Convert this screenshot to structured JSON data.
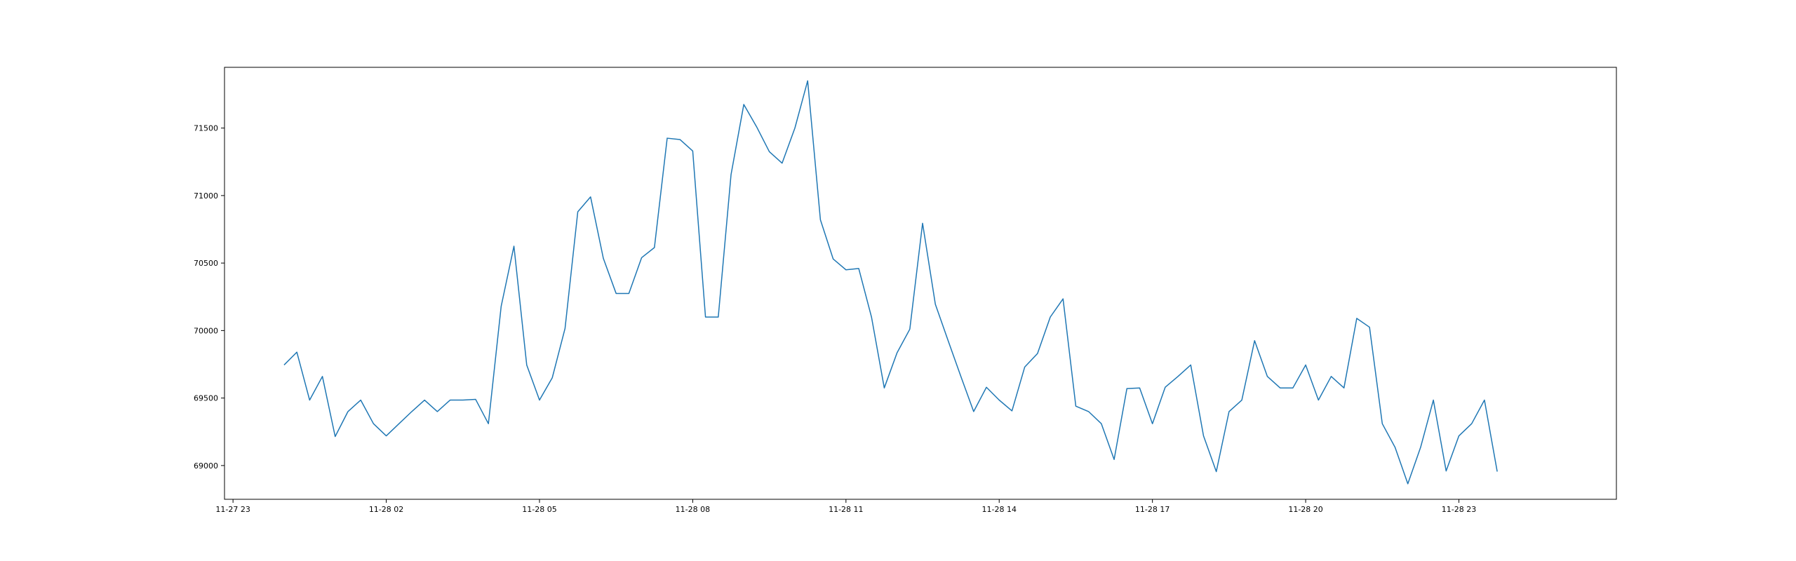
{
  "chart_data": {
    "type": "line",
    "title": "",
    "xlabel": "",
    "ylabel": "",
    "grid": false,
    "legend": "none",
    "line_color": "#1f77b4",
    "xlim": [
      "2023-11-27 22:50",
      "2023-11-29 02:05"
    ],
    "ylim": [
      68750,
      71950
    ],
    "x_ticks": [
      "2023-11-27 23:00",
      "2023-11-28 02:00",
      "2023-11-28 05:00",
      "2023-11-28 08:00",
      "2023-11-28 11:00",
      "2023-11-28 14:00",
      "2023-11-28 17:00",
      "2023-11-28 20:00",
      "2023-11-28 23:00"
    ],
    "x_tick_labels": [
      "11-27 23",
      "11-28 02",
      "11-28 05",
      "11-28 08",
      "11-28 11",
      "11-28 14",
      "11-28 17",
      "11-28 20",
      "11-28 23"
    ],
    "y_ticks": [
      69000,
      69500,
      70000,
      70500,
      71000,
      71500
    ],
    "y_tick_labels": [
      "69000",
      "69500",
      "70000",
      "70500",
      "71000",
      "71500"
    ],
    "series": [
      {
        "x": [
          "2023-11-28 00:00",
          "2023-11-28 00:15",
          "2023-11-28 00:30",
          "2023-11-28 00:45",
          "2023-11-28 01:00",
          "2023-11-28 01:15",
          "2023-11-28 01:30",
          "2023-11-28 01:45",
          "2023-11-28 02:00",
          "2023-11-28 02:15",
          "2023-11-28 02:30",
          "2023-11-28 02:45",
          "2023-11-28 03:00",
          "2023-11-28 03:15",
          "2023-11-28 03:30",
          "2023-11-28 03:45",
          "2023-11-28 04:00",
          "2023-11-28 04:15",
          "2023-11-28 04:30",
          "2023-11-28 04:45",
          "2023-11-28 05:00",
          "2023-11-28 05:15",
          "2023-11-28 05:30",
          "2023-11-28 05:45",
          "2023-11-28 06:00",
          "2023-11-28 06:15",
          "2023-11-28 06:30",
          "2023-11-28 06:45",
          "2023-11-28 07:00",
          "2023-11-28 07:15",
          "2023-11-28 07:30",
          "2023-11-28 07:45",
          "2023-11-28 08:00",
          "2023-11-28 08:15",
          "2023-11-28 08:30",
          "2023-11-28 08:45",
          "2023-11-28 09:00",
          "2023-11-28 09:15",
          "2023-11-28 09:30",
          "2023-11-28 09:45",
          "2023-11-28 10:00",
          "2023-11-28 10:15",
          "2023-11-28 10:30",
          "2023-11-28 10:45",
          "2023-11-28 11:00",
          "2023-11-28 11:15",
          "2023-11-28 11:30",
          "2023-11-28 11:45",
          "2023-11-28 12:00",
          "2023-11-28 12:15",
          "2023-11-28 12:30",
          "2023-11-28 12:45",
          "2023-11-28 13:00",
          "2023-11-28 13:15",
          "2023-11-28 13:30",
          "2023-11-28 13:45",
          "2023-11-28 14:00",
          "2023-11-28 14:15",
          "2023-11-28 14:30",
          "2023-11-28 14:45",
          "2023-11-28 15:00",
          "2023-11-28 15:15",
          "2023-11-28 15:30",
          "2023-11-28 15:45",
          "2023-11-28 16:00",
          "2023-11-28 16:15",
          "2023-11-28 16:30",
          "2023-11-28 16:45",
          "2023-11-28 17:00",
          "2023-11-28 17:15",
          "2023-11-28 17:30",
          "2023-11-28 17:45",
          "2023-11-28 18:00",
          "2023-11-28 18:15",
          "2023-11-28 18:30",
          "2023-11-28 18:45",
          "2023-11-28 19:00",
          "2023-11-28 19:15",
          "2023-11-28 19:30",
          "2023-11-28 19:45",
          "2023-11-28 20:00",
          "2023-11-28 20:15",
          "2023-11-28 20:30",
          "2023-11-28 20:45",
          "2023-11-28 21:00",
          "2023-11-28 21:15",
          "2023-11-28 21:30",
          "2023-11-28 21:45",
          "2023-11-28 22:00",
          "2023-11-28 22:15",
          "2023-11-28 22:30",
          "2023-11-28 22:45",
          "2023-11-28 23:00",
          "2023-11-28 23:15",
          "2023-11-28 23:30",
          "2023-11-28 23:45"
        ],
        "values": [
          69745,
          69840,
          69485,
          69660,
          69215,
          69400,
          69485,
          69310,
          69220,
          69310,
          69400,
          69485,
          69400,
          69485,
          69485,
          69490,
          69310,
          70180,
          70625,
          69745,
          69485,
          69650,
          70015,
          70880,
          70990,
          70535,
          70275,
          70275,
          70540,
          70615,
          71425,
          71415,
          71330,
          70100,
          70100,
          71155,
          71675,
          71510,
          71325,
          71240,
          71500,
          71850,
          70820,
          70530,
          70450,
          70460,
          70100,
          69575,
          69835,
          70010,
          70795,
          70195,
          69925,
          69660,
          69400,
          69580,
          69485,
          69405,
          69730,
          69830,
          70100,
          70235,
          69440,
          69400,
          69310,
          69045,
          69570,
          69575,
          69310,
          69580,
          69660,
          69745,
          69220,
          68955,
          69400,
          69485,
          69925,
          69660,
          69575,
          69575,
          69745,
          69485,
          69660,
          69575,
          70090,
          70025,
          69310,
          69135,
          68865,
          69135,
          69485,
          68960,
          69220,
          69310,
          69485,
          68955
        ]
      }
    ]
  }
}
